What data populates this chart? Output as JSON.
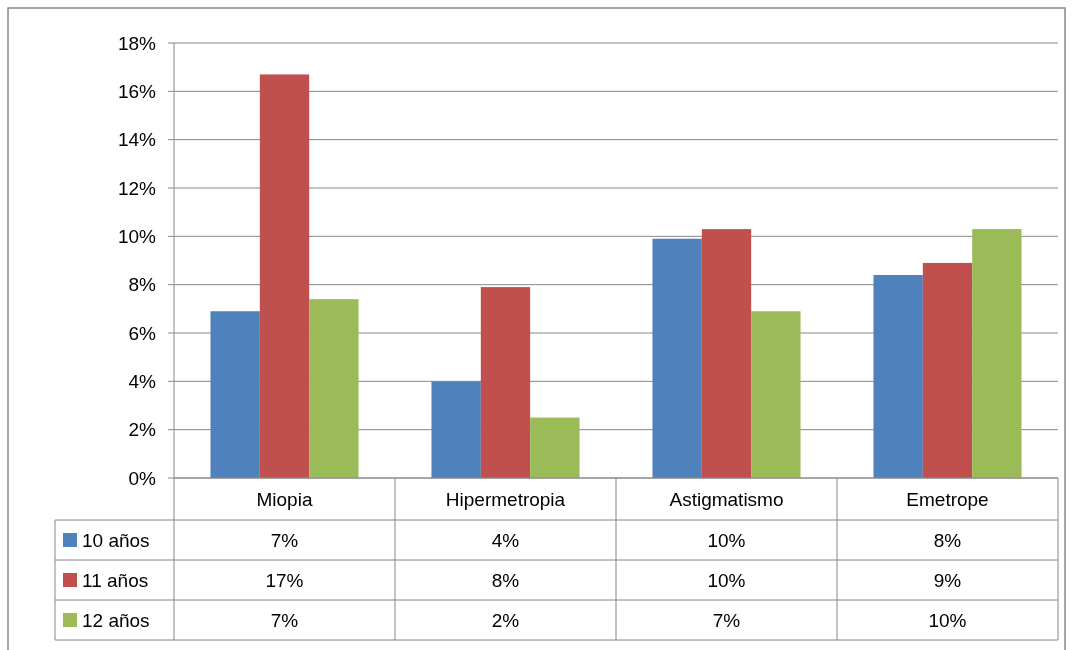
{
  "chart_data": {
    "type": "bar",
    "categories": [
      "Miopia",
      "Hipermetropia",
      "Astigmatismo",
      "Emetrope"
    ],
    "series": [
      {
        "name": "10 años",
        "color": "#4f81bd",
        "values": [
          6.9,
          4.0,
          9.9,
          8.4
        ],
        "value_labels": [
          "7%",
          "4%",
          "10%",
          "8%"
        ]
      },
      {
        "name": "11 años",
        "color": "#c0504d",
        "values": [
          16.7,
          7.9,
          10.3,
          8.9
        ],
        "value_labels": [
          "17%",
          "8%",
          "10%",
          "9%"
        ]
      },
      {
        "name": "12 años",
        "color": "#9bbb59",
        "values": [
          7.4,
          2.5,
          6.9,
          10.3
        ],
        "value_labels": [
          "7%",
          "2%",
          "7%",
          "10%"
        ]
      }
    ],
    "ylim": [
      0,
      18
    ],
    "yticks": [
      {
        "value": 0,
        "label": "0%"
      },
      {
        "value": 2,
        "label": "2%"
      },
      {
        "value": 4,
        "label": "4%"
      },
      {
        "value": 6,
        "label": "6%"
      },
      {
        "value": 8,
        "label": "8%"
      },
      {
        "value": 10,
        "label": "10%"
      },
      {
        "value": 12,
        "label": "12%"
      },
      {
        "value": 14,
        "label": "14%"
      },
      {
        "value": 16,
        "label": "16%"
      },
      {
        "value": 18,
        "label": "18%"
      }
    ],
    "grid": "y",
    "legend": "left"
  }
}
